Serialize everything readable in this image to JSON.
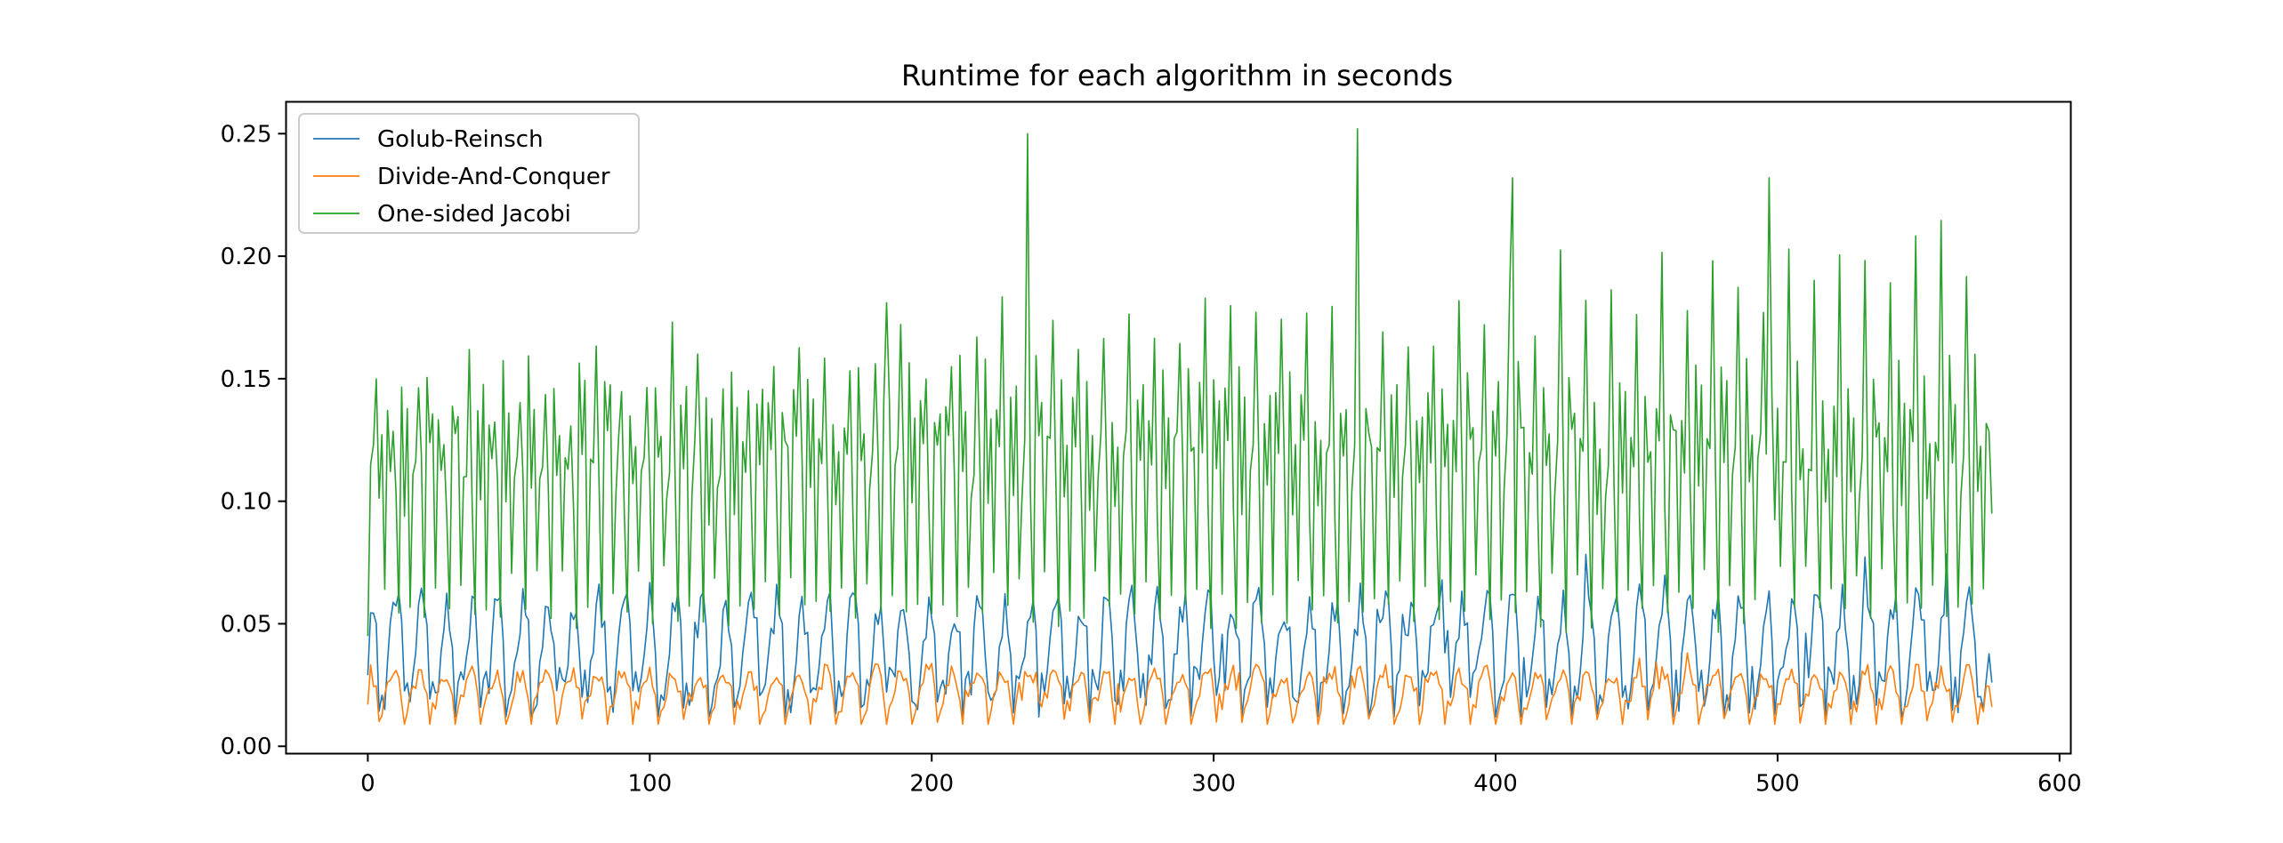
{
  "chart_data": {
    "type": "line",
    "title": "Runtime for each algorithm in seconds",
    "xlabel": "",
    "ylabel": "",
    "xlim": [
      -29,
      604
    ],
    "ylim": [
      -0.003,
      0.263
    ],
    "x_ticks": [
      0,
      100,
      200,
      300,
      400,
      500,
      600
    ],
    "y_ticks": [
      0.0,
      0.05,
      0.1,
      0.15,
      0.2,
      0.25
    ],
    "x_tick_labels": [
      "0",
      "100",
      "200",
      "300",
      "400",
      "500",
      "600"
    ],
    "y_tick_labels": [
      "0.00",
      "0.05",
      "0.10",
      "0.15",
      "0.20",
      "0.25"
    ],
    "grid": false,
    "legend_position": "top-left",
    "n_points": 577,
    "series": [
      {
        "name": "Golub-Reinsch",
        "color": "#1f77b4",
        "approx_profile": {
          "description": "oscillates roughly between 0.02 and 0.065, mean ~0.04",
          "min": 0.013,
          "max": 0.087,
          "start": 0.029,
          "end": 0.026
        }
      },
      {
        "name": "Divide-And-Conquer",
        "color": "#ff7f0e",
        "approx_profile": {
          "description": "oscillates roughly between 0.012 and 0.035, mean ~0.023",
          "min": 0.009,
          "max": 0.04,
          "start": 0.017,
          "end": 0.016
        }
      },
      {
        "name": "One-sided Jacobi",
        "color": "#2ca02c",
        "approx_profile": {
          "description": "large oscillations from ~0.04 to ~0.15, with periodic spikes up to ~0.25; peaks increase over time",
          "min": 0.033,
          "max": 0.252,
          "start": 0.045,
          "end": 0.095,
          "notable_peaks": [
            [
              234,
              0.25
            ],
            [
              351,
              0.252
            ],
            [
              406,
              0.232
            ],
            [
              497,
              0.232
            ],
            [
              184,
              0.181
            ]
          ]
        }
      }
    ]
  }
}
